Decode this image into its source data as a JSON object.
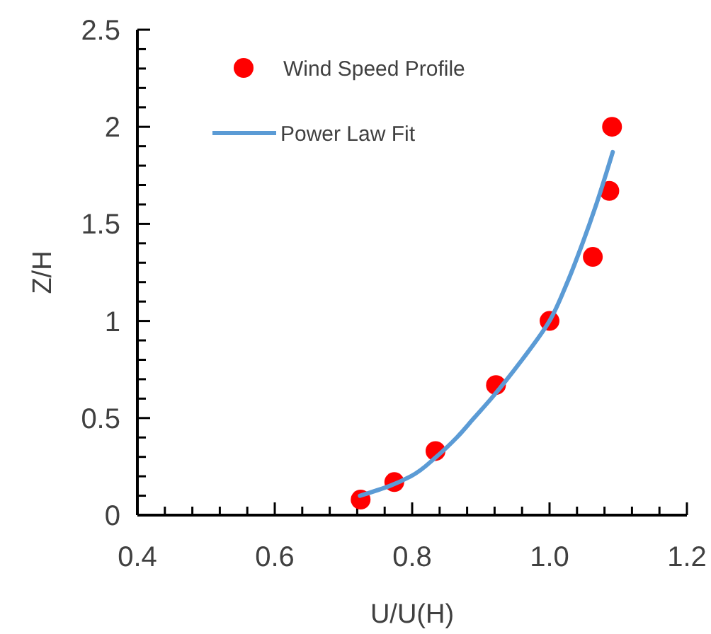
{
  "chart_data": {
    "type": "scatter",
    "xlabel": "U/U(H)",
    "ylabel": "Z/H",
    "xlim": [
      0.4,
      1.2
    ],
    "xticks": [
      {
        "value": 0.4,
        "label": "0.4"
      },
      {
        "value": 0.44,
        "label": null
      },
      {
        "value": 0.48,
        "label": null
      },
      {
        "value": 0.52,
        "label": null
      },
      {
        "value": 0.56,
        "label": null
      },
      {
        "value": 0.6,
        "label": "0.6"
      },
      {
        "value": 0.64,
        "label": null
      },
      {
        "value": 0.68,
        "label": null
      },
      {
        "value": 0.72,
        "label": null
      },
      {
        "value": 0.76,
        "label": null
      },
      {
        "value": 0.8,
        "label": "0.8"
      },
      {
        "value": 0.84,
        "label": null
      },
      {
        "value": 0.88,
        "label": null
      },
      {
        "value": 0.92,
        "label": null
      },
      {
        "value": 0.96,
        "label": null
      },
      {
        "value": 1,
        "label": "1.0"
      },
      {
        "value": 1.04,
        "label": null
      },
      {
        "value": 1.08,
        "label": null
      },
      {
        "value": 1.12,
        "label": null
      },
      {
        "value": 1.16,
        "label": null
      },
      {
        "value": 1.2,
        "label": "1.2"
      }
    ],
    "ylim": [
      0,
      2.5
    ],
    "yticks": [
      0,
      {
        "value": 0.1,
        "label": null
      },
      {
        "value": 0.2,
        "label": null
      },
      {
        "value": 0.3,
        "label": null
      },
      {
        "value": 0.4,
        "label": null
      },
      0.5,
      {
        "value": 0.6,
        "label": null
      },
      {
        "value": 0.7,
        "label": null
      },
      {
        "value": 0.8,
        "label": null
      },
      {
        "value": 0.9,
        "label": null
      },
      1,
      {
        "value": 1.1,
        "label": null
      },
      {
        "value": 1.2,
        "label": null
      },
      {
        "value": 1.3,
        "label": null
      },
      {
        "value": 1.4,
        "label": null
      },
      1.5,
      {
        "value": 1.6,
        "label": null
      },
      {
        "value": 1.7,
        "label": null
      },
      {
        "value": 1.8,
        "label": null
      },
      {
        "value": 1.9,
        "label": null
      },
      2,
      {
        "value": 2.1,
        "label": null
      },
      {
        "value": 2.2,
        "label": null
      },
      {
        "value": 2.3,
        "label": null
      },
      {
        "value": 2.4,
        "label": null
      },
      2.5
    ],
    "grid": false,
    "legend": "top left",
    "series": [
      {
        "name": "Wind Speed Profile",
        "marker": "circle",
        "color": "#ff0000",
        "x": [
          0.725,
          0.774,
          0.834,
          0.922,
          1.0,
          1.063,
          1.087,
          1.091
        ],
        "values": [
          0.08,
          0.17,
          0.33,
          0.67,
          1.0,
          1.33,
          1.67,
          2.0
        ]
      },
      {
        "name": "Power Law Fit",
        "type": "line",
        "marker": "none",
        "line_style": "solid",
        "color": "#5b9bd5",
        "x": [
          0.724,
          0.767,
          0.798,
          0.835,
          0.865,
          0.89,
          0.915,
          0.96,
          1.0,
          1.026,
          1.048,
          1.068,
          1.092
        ],
        "values": [
          0.1,
          0.15,
          0.2,
          0.3,
          0.4,
          0.5,
          0.6,
          0.8,
          1.0,
          1.2,
          1.4,
          1.6,
          1.87
        ]
      }
    ]
  }
}
